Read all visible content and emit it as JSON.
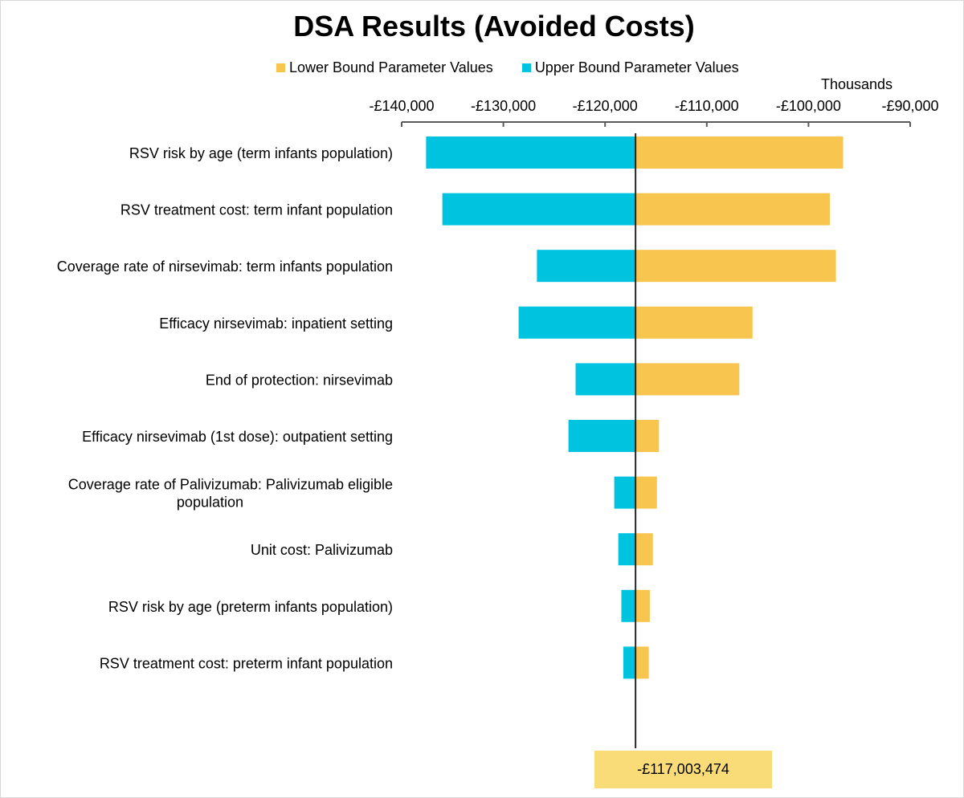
{
  "colors": {
    "lower": "#f8c64f",
    "upper": "#00c4df",
    "base_box": "#f9dc78"
  },
  "chart_data": {
    "type": "bar",
    "subtype": "tornado",
    "title": "DSA Results (Avoided Costs)",
    "axis_units_label": "Thousands",
    "xlim": [
      -140000,
      -90000
    ],
    "x_ticks": [
      -140000,
      -130000,
      -120000,
      -110000,
      -100000,
      -90000
    ],
    "x_tick_labels": [
      "-£140,000",
      "-£130,000",
      "-£120,000",
      "-£110,000",
      "-£100,000",
      "-£90,000"
    ],
    "x_axis_position": "top",
    "grid": false,
    "legend_position": "top",
    "base_value": -117003.474,
    "base_value_label": "-£117,003,474",
    "categories": [
      "RSV risk by age (term infants population)",
      "RSV treatment cost: term infant population",
      "Coverage rate of nirsevimab: term infants population",
      "Efficacy nirsevimab: inpatient setting",
      "End of protection: nirsevimab",
      "Efficacy nirsevimab (1st dose): outpatient setting",
      "Coverage rate of Palivizumab: Palivizumab eligible population",
      "Unit cost: Palivizumab",
      "RSV risk by age (preterm infants population)",
      "RSV treatment cost: preterm infant population"
    ],
    "series": [
      {
        "name": "Lower Bound Parameter Values",
        "values": [
          -96600,
          -97900,
          -97300,
          -105500,
          -106800,
          -114700,
          -114900,
          -115300,
          -115600,
          -115700
        ]
      },
      {
        "name": "Upper Bound Parameter Values",
        "values": [
          -137600,
          -136000,
          -126700,
          -128500,
          -122900,
          -123600,
          -119100,
          -118700,
          -118400,
          -118200
        ]
      }
    ]
  }
}
